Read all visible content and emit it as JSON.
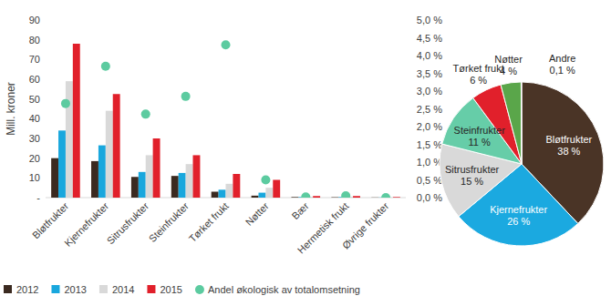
{
  "chart_data": [
    {
      "type": "bar",
      "y_label": "Mill. kroner",
      "categories": [
        "Bløtfrukter",
        "Kjernefrukter",
        "Sitrusfrukter",
        "Steinfrukter",
        "Tørket frukt",
        "Nøtter",
        "Bær",
        "Hermetisk frukt",
        "Øvrige frukter"
      ],
      "series": [
        {
          "name": "2012",
          "color": "#3b2a20",
          "values": [
            20,
            18.5,
            10.5,
            11,
            3,
            1,
            0.3,
            0.2,
            0.1
          ]
        },
        {
          "name": "2013",
          "color": "#19a7dd",
          "values": [
            34,
            26.5,
            13,
            12.5,
            4,
            2.5,
            0.3,
            0.3,
            0.1
          ]
        },
        {
          "name": "2014",
          "color": "#d9d9d9",
          "values": [
            59,
            44,
            21.5,
            17,
            7,
            5,
            0.5,
            0.5,
            0.2
          ]
        },
        {
          "name": "2015",
          "color": "#e1202b",
          "values": [
            78,
            52.5,
            30,
            21.5,
            12,
            9,
            0.8,
            0.8,
            0.3
          ]
        },
        {
          "name": "Andel økologisk av totalomsetning",
          "type": "scatter",
          "axis": "y2",
          "marker": "circle",
          "color": "#5ccba0",
          "values": [
            2.65,
            3.7,
            2.35,
            2.85,
            4.3,
            0.5,
            0.02,
            0.05,
            0
          ]
        }
      ],
      "ylim": [
        0,
        90
      ],
      "yticks": [
        {
          "value": 0,
          "label": "-"
        },
        10,
        20,
        30,
        40,
        50,
        60,
        70,
        80,
        90
      ],
      "y2lim": [
        0,
        5
      ],
      "y2ticks": [
        {
          "value": 0,
          "label": "0,0 %"
        },
        {
          "value": 0.5,
          "label": "0,5 %"
        },
        {
          "value": 1,
          "label": "1,0 %"
        },
        {
          "value": 1.5,
          "label": "1,5 %"
        },
        {
          "value": 2,
          "label": "2,0 %"
        },
        {
          "value": 2.5,
          "label": "2,5 %"
        },
        {
          "value": 3,
          "label": "3,0 %"
        },
        {
          "value": 3.5,
          "label": "3,5 %"
        },
        {
          "value": 4,
          "label": "4,0 %"
        },
        {
          "value": 4.5,
          "label": "4,5 %"
        },
        {
          "value": 5,
          "label": "5,0 %"
        }
      ],
      "grid": false,
      "legend": "bottom"
    },
    {
      "type": "pie",
      "categories": [
        "Bløtfrukter",
        "Kjernefrukter",
        "Sitrusfrukter",
        "Steinfrukter",
        "Tørket frukt",
        "Nøtter",
        "Andre"
      ],
      "values": [
        38,
        26,
        15,
        11,
        6,
        4,
        0.1
      ],
      "value_labels": [
        "38 %",
        "26 %",
        "15 %",
        "11 %",
        "6 %",
        "4 %",
        "0,1 %"
      ],
      "colors": [
        "#4a3426",
        "#1ba9e0",
        "#d9d9d9",
        "#66cda8",
        "#e1202b",
        "#5aa64a",
        "#a6a6a6"
      ],
      "data_labels": true
    }
  ]
}
